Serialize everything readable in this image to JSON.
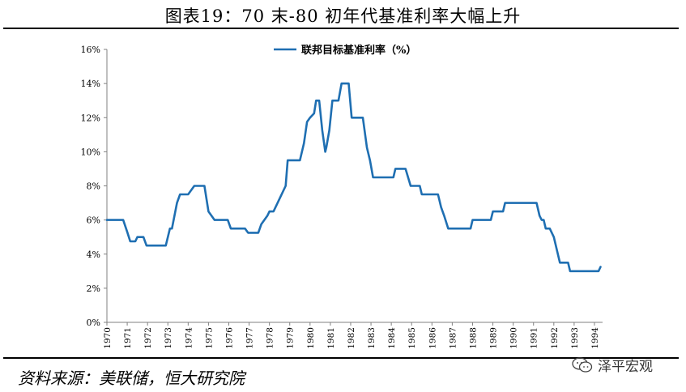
{
  "title": "图表19：70 末-80 初年代基准利率大幅上升",
  "source": "资料来源：美联储，恒大研究院",
  "watermark": "泽平宏观",
  "colors": {
    "line": "#1F6FB2",
    "axis": "#808080"
  },
  "chart_data": {
    "type": "line",
    "legend_position": "top-center",
    "grid": false,
    "xlabel": "",
    "ylabel": "",
    "ylim": [
      0,
      16
    ],
    "y_ticks": [
      "0%",
      "2%",
      "4%",
      "6%",
      "8%",
      "10%",
      "12%",
      "14%",
      "16%"
    ],
    "x_ticks": [
      "1970",
      "1971",
      "1972",
      "1973",
      "1974",
      "1975",
      "1976",
      "1977",
      "1978",
      "1979",
      "1980",
      "1981",
      "1982",
      "1983",
      "1984",
      "1985",
      "1986",
      "1987",
      "1988",
      "1989",
      "1990",
      "1991",
      "1992",
      "1993",
      "1994"
    ],
    "xlim": [
      1970,
      1994.4
    ],
    "series": [
      {
        "name": "联邦目标基准利率（%）",
        "points": [
          [
            1970.0,
            6.0
          ],
          [
            1970.8,
            6.0
          ],
          [
            1971.0,
            5.3
          ],
          [
            1971.15,
            4.75
          ],
          [
            1971.4,
            4.75
          ],
          [
            1971.5,
            5.0
          ],
          [
            1971.8,
            5.0
          ],
          [
            1971.95,
            4.5
          ],
          [
            1972.9,
            4.5
          ],
          [
            1973.1,
            5.5
          ],
          [
            1973.2,
            5.5
          ],
          [
            1973.45,
            7.0
          ],
          [
            1973.6,
            7.5
          ],
          [
            1974.0,
            7.5
          ],
          [
            1974.3,
            8.0
          ],
          [
            1974.8,
            8.0
          ],
          [
            1975.0,
            6.5
          ],
          [
            1975.3,
            6.0
          ],
          [
            1975.95,
            6.0
          ],
          [
            1976.1,
            5.5
          ],
          [
            1976.8,
            5.5
          ],
          [
            1976.95,
            5.25
          ],
          [
            1977.45,
            5.25
          ],
          [
            1977.6,
            5.75
          ],
          [
            1977.9,
            6.25
          ],
          [
            1978.0,
            6.5
          ],
          [
            1978.2,
            6.5
          ],
          [
            1978.5,
            7.25
          ],
          [
            1978.8,
            8.0
          ],
          [
            1978.9,
            9.5
          ],
          [
            1979.5,
            9.5
          ],
          [
            1979.7,
            10.5
          ],
          [
            1979.85,
            11.75
          ],
          [
            1980.0,
            12.0
          ],
          [
            1980.2,
            12.25
          ],
          [
            1980.3,
            13.0
          ],
          [
            1980.45,
            13.0
          ],
          [
            1980.6,
            11.25
          ],
          [
            1980.75,
            10.0
          ],
          [
            1980.8,
            10.25
          ],
          [
            1980.95,
            11.25
          ],
          [
            1981.1,
            13.0
          ],
          [
            1981.4,
            13.0
          ],
          [
            1981.55,
            14.0
          ],
          [
            1981.9,
            14.0
          ],
          [
            1982.05,
            12.0
          ],
          [
            1982.6,
            12.0
          ],
          [
            1982.8,
            10.25
          ],
          [
            1982.95,
            9.5
          ],
          [
            1983.1,
            8.5
          ],
          [
            1984.1,
            8.5
          ],
          [
            1984.2,
            9.0
          ],
          [
            1984.7,
            9.0
          ],
          [
            1984.95,
            8.0
          ],
          [
            1985.4,
            8.0
          ],
          [
            1985.5,
            7.5
          ],
          [
            1986.3,
            7.5
          ],
          [
            1986.45,
            6.75
          ],
          [
            1986.6,
            6.25
          ],
          [
            1986.8,
            5.5
          ],
          [
            1987.9,
            5.5
          ],
          [
            1988.0,
            6.0
          ],
          [
            1988.9,
            6.0
          ],
          [
            1989.0,
            6.5
          ],
          [
            1989.5,
            6.5
          ],
          [
            1989.6,
            7.0
          ],
          [
            1991.15,
            7.0
          ],
          [
            1991.3,
            6.25
          ],
          [
            1991.4,
            6.0
          ],
          [
            1991.5,
            6.0
          ],
          [
            1991.6,
            5.5
          ],
          [
            1991.8,
            5.5
          ],
          [
            1992.0,
            5.0
          ],
          [
            1992.2,
            4.0
          ],
          [
            1992.3,
            3.5
          ],
          [
            1992.7,
            3.5
          ],
          [
            1992.8,
            3.0
          ],
          [
            1994.2,
            3.0
          ],
          [
            1994.3,
            3.25
          ]
        ]
      }
    ]
  }
}
